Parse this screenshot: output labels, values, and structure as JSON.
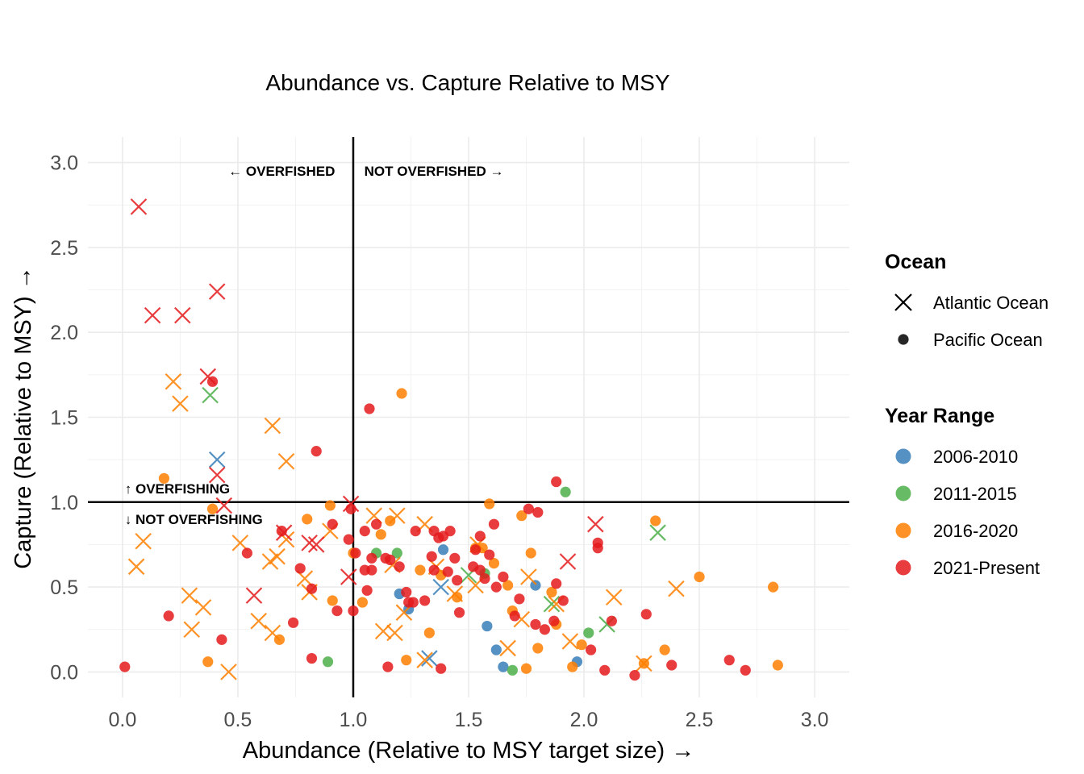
{
  "chart_data": {
    "type": "scatter",
    "title": "Abundance vs. Capture Relative to MSY",
    "xlabel": "Abundance (Relative to MSY target size) →",
    "ylabel": "Capture (Relative to MSY) →",
    "xlim": [
      -0.15,
      3.15
    ],
    "ylim": [
      -0.15,
      3.15
    ],
    "x_ticks": [
      0.0,
      0.5,
      1.0,
      1.5,
      2.0,
      2.5,
      3.0
    ],
    "x_tick_labels": [
      "0.0",
      "0.5",
      "1.0",
      "1.5",
      "2.0",
      "2.5",
      "3.0"
    ],
    "y_ticks": [
      0.0,
      0.5,
      1.0,
      1.5,
      2.0,
      2.5,
      3.0
    ],
    "y_tick_labels": [
      "0.0",
      "0.5",
      "1.0",
      "1.5",
      "2.0",
      "2.5",
      "3.0"
    ],
    "grid": true,
    "reference_lines": {
      "x": 1.0,
      "y": 1.0
    },
    "annotations": [
      {
        "text": "← OVERFISHED",
        "x": 0.69,
        "y": 2.95,
        "anchor": "middle"
      },
      {
        "text": "NOT OVERFISHED →",
        "x": 1.35,
        "y": 2.95,
        "anchor": "middle"
      },
      {
        "text": "↑ OVERFISHING",
        "x": 0.01,
        "y": 1.08,
        "anchor": "start"
      },
      {
        "text": "↓ NOT OVERFISHING",
        "x": 0.01,
        "y": 0.9,
        "anchor": "start"
      }
    ],
    "legend": {
      "placement": "right",
      "shape_title": "Ocean",
      "shapes": [
        {
          "name": "Atlantic Ocean",
          "marker": "x"
        },
        {
          "name": "Pacific Ocean",
          "marker": "dot"
        }
      ],
      "color_title": "Year Range",
      "colors": [
        {
          "name": "2006-2010",
          "color": "#377eb8"
        },
        {
          "name": "2011-2015",
          "color": "#4daf4a"
        },
        {
          "name": "2016-2020",
          "color": "#ff7f00"
        },
        {
          "name": "2021-Present",
          "color": "#e41a1c"
        }
      ]
    },
    "series": [
      {
        "year_range": "2006-2010",
        "ocean": "Atlantic Ocean",
        "marker": "x",
        "color": "#377eb8",
        "points": [
          [
            0.41,
            1.25
          ],
          [
            1.33,
            0.08
          ],
          [
            1.38,
            0.5
          ]
        ]
      },
      {
        "year_range": "2006-2010",
        "ocean": "Pacific Ocean",
        "marker": "dot",
        "color": "#377eb8",
        "points": [
          [
            1.2,
            0.46
          ],
          [
            1.24,
            0.37
          ],
          [
            1.39,
            0.72
          ],
          [
            1.58,
            0.27
          ],
          [
            1.62,
            0.13
          ],
          [
            1.65,
            0.03
          ],
          [
            1.79,
            0.51
          ],
          [
            1.97,
            0.06
          ]
        ]
      },
      {
        "year_range": "2011-2015",
        "ocean": "Atlantic Ocean",
        "marker": "x",
        "color": "#4daf4a",
        "points": [
          [
            0.38,
            1.63
          ],
          [
            1.5,
            0.57
          ],
          [
            1.86,
            0.4
          ],
          [
            2.1,
            0.28
          ],
          [
            2.32,
            0.82
          ]
        ]
      },
      {
        "year_range": "2011-2015",
        "ocean": "Pacific Ocean",
        "marker": "dot",
        "color": "#4daf4a",
        "points": [
          [
            0.89,
            0.06
          ],
          [
            1.1,
            0.7
          ],
          [
            1.19,
            0.7
          ],
          [
            1.57,
            0.58
          ],
          [
            1.69,
            0.01
          ],
          [
            1.92,
            1.06
          ],
          [
            2.02,
            0.23
          ]
        ]
      },
      {
        "year_range": "2016-2020",
        "ocean": "Atlantic Ocean",
        "marker": "x",
        "color": "#ff7f00",
        "points": [
          [
            0.06,
            0.62
          ],
          [
            0.09,
            0.77
          ],
          [
            0.22,
            1.71
          ],
          [
            0.25,
            1.58
          ],
          [
            0.29,
            0.45
          ],
          [
            0.3,
            0.25
          ],
          [
            0.35,
            0.38
          ],
          [
            0.46,
            0.0
          ],
          [
            0.51,
            0.76
          ],
          [
            0.59,
            0.3
          ],
          [
            0.64,
            0.65
          ],
          [
            0.65,
            0.23
          ],
          [
            0.65,
            1.45
          ],
          [
            0.67,
            0.68
          ],
          [
            0.71,
            1.24
          ],
          [
            0.71,
            0.78
          ],
          [
            0.79,
            0.55
          ],
          [
            0.81,
            0.47
          ],
          [
            0.9,
            0.83
          ],
          [
            1.09,
            0.92
          ],
          [
            1.13,
            0.24
          ],
          [
            1.17,
            0.63
          ],
          [
            1.18,
            0.23
          ],
          [
            1.19,
            0.92
          ],
          [
            1.22,
            0.35
          ],
          [
            1.31,
            0.87
          ],
          [
            1.31,
            0.07
          ],
          [
            1.36,
            0.62
          ],
          [
            1.44,
            0.46
          ],
          [
            1.53,
            0.51
          ],
          [
            1.54,
            0.75
          ],
          [
            1.67,
            0.14
          ],
          [
            1.73,
            0.31
          ],
          [
            1.76,
            0.56
          ],
          [
            1.88,
            0.4
          ],
          [
            1.94,
            0.18
          ],
          [
            2.13,
            0.44
          ],
          [
            2.26,
            0.05
          ],
          [
            2.4,
            0.49
          ]
        ]
      },
      {
        "year_range": "2016-2020",
        "ocean": "Pacific Ocean",
        "marker": "dot",
        "color": "#ff7f00",
        "points": [
          [
            0.18,
            1.14
          ],
          [
            0.37,
            0.06
          ],
          [
            0.39,
            0.96
          ],
          [
            0.68,
            0.19
          ],
          [
            0.8,
            0.9
          ],
          [
            0.9,
            0.98
          ],
          [
            0.91,
            0.42
          ],
          [
            1.0,
            0.7
          ],
          [
            1.04,
            0.41
          ],
          [
            1.12,
            0.81
          ],
          [
            1.16,
            0.89
          ],
          [
            1.21,
            1.64
          ],
          [
            1.23,
            0.07
          ],
          [
            1.29,
            0.6
          ],
          [
            1.33,
            0.23
          ],
          [
            1.38,
            0.57
          ],
          [
            1.45,
            0.44
          ],
          [
            1.53,
            0.73
          ],
          [
            1.56,
            0.73
          ],
          [
            1.59,
            0.99
          ],
          [
            1.61,
            0.64
          ],
          [
            1.67,
            0.51
          ],
          [
            1.69,
            0.36
          ],
          [
            1.73,
            0.92
          ],
          [
            1.75,
            0.02
          ],
          [
            1.77,
            0.7
          ],
          [
            1.8,
            0.14
          ],
          [
            1.86,
            0.47
          ],
          [
            1.88,
            0.28
          ],
          [
            1.95,
            0.03
          ],
          [
            1.99,
            0.16
          ],
          [
            2.26,
            0.05
          ],
          [
            2.31,
            0.89
          ],
          [
            2.35,
            0.13
          ],
          [
            2.5,
            0.56
          ],
          [
            2.82,
            0.5
          ],
          [
            2.84,
            0.04
          ]
        ]
      },
      {
        "year_range": "2021-Present",
        "ocean": "Atlantic Ocean",
        "marker": "x",
        "color": "#e41a1c",
        "points": [
          [
            0.07,
            2.74
          ],
          [
            0.13,
            2.1
          ],
          [
            0.26,
            2.1
          ],
          [
            0.37,
            1.74
          ],
          [
            0.41,
            2.24
          ],
          [
            0.41,
            1.16
          ],
          [
            0.44,
            0.98
          ],
          [
            0.57,
            0.45
          ],
          [
            0.7,
            0.82
          ],
          [
            0.81,
            0.76
          ],
          [
            0.84,
            0.75
          ],
          [
            0.98,
            0.56
          ],
          [
            0.99,
            0.99
          ],
          [
            1.93,
            0.65
          ],
          [
            2.05,
            0.87
          ]
        ]
      },
      {
        "year_range": "2021-Present",
        "ocean": "Pacific Ocean",
        "marker": "dot",
        "color": "#e41a1c",
        "points": [
          [
            0.01,
            0.03
          ],
          [
            0.2,
            0.33
          ],
          [
            0.39,
            1.71
          ],
          [
            0.43,
            0.19
          ],
          [
            0.54,
            0.7
          ],
          [
            0.69,
            0.83
          ],
          [
            0.74,
            0.29
          ],
          [
            0.77,
            0.61
          ],
          [
            0.82,
            0.49
          ],
          [
            0.82,
            0.08
          ],
          [
            0.84,
            1.3
          ],
          [
            0.91,
            0.87
          ],
          [
            0.93,
            0.36
          ],
          [
            0.98,
            0.78
          ],
          [
            0.99,
            0.96
          ],
          [
            1.0,
            0.36
          ],
          [
            1.01,
            0.7
          ],
          [
            1.05,
            0.6
          ],
          [
            1.05,
            0.83
          ],
          [
            1.06,
            0.48
          ],
          [
            1.07,
            1.55
          ],
          [
            1.08,
            0.67
          ],
          [
            1.08,
            0.6
          ],
          [
            1.1,
            0.87
          ],
          [
            1.14,
            0.67
          ],
          [
            1.15,
            0.03
          ],
          [
            1.16,
            0.66
          ],
          [
            1.2,
            0.62
          ],
          [
            1.23,
            0.47
          ],
          [
            1.24,
            0.41
          ],
          [
            1.26,
            0.41
          ],
          [
            1.27,
            0.83
          ],
          [
            1.31,
            0.42
          ],
          [
            1.34,
            0.68
          ],
          [
            1.35,
            0.6
          ],
          [
            1.35,
            0.83
          ],
          [
            1.37,
            0.79
          ],
          [
            1.38,
            0.02
          ],
          [
            1.39,
            0.8
          ],
          [
            1.41,
            0.59
          ],
          [
            1.42,
            0.83
          ],
          [
            1.44,
            0.67
          ],
          [
            1.45,
            0.54
          ],
          [
            1.46,
            0.35
          ],
          [
            1.52,
            0.62
          ],
          [
            1.53,
            0.72
          ],
          [
            1.55,
            0.6
          ],
          [
            1.55,
            0.8
          ],
          [
            1.57,
            0.55
          ],
          [
            1.59,
            0.69
          ],
          [
            1.61,
            0.87
          ],
          [
            1.62,
            0.5
          ],
          [
            1.65,
            0.56
          ],
          [
            1.7,
            0.33
          ],
          [
            1.72,
            0.43
          ],
          [
            1.76,
            0.96
          ],
          [
            1.79,
            0.28
          ],
          [
            1.8,
            0.94
          ],
          [
            1.83,
            0.25
          ],
          [
            1.87,
            0.3
          ],
          [
            1.88,
            0.52
          ],
          [
            1.88,
            1.12
          ],
          [
            1.91,
            0.42
          ],
          [
            2.03,
            0.13
          ],
          [
            2.06,
            0.76
          ],
          [
            2.06,
            0.73
          ],
          [
            2.09,
            0.01
          ],
          [
            2.12,
            0.3
          ],
          [
            2.22,
            -0.02
          ],
          [
            2.27,
            0.34
          ],
          [
            2.38,
            0.04
          ],
          [
            2.63,
            0.07
          ],
          [
            2.7,
            0.01
          ]
        ]
      }
    ]
  }
}
